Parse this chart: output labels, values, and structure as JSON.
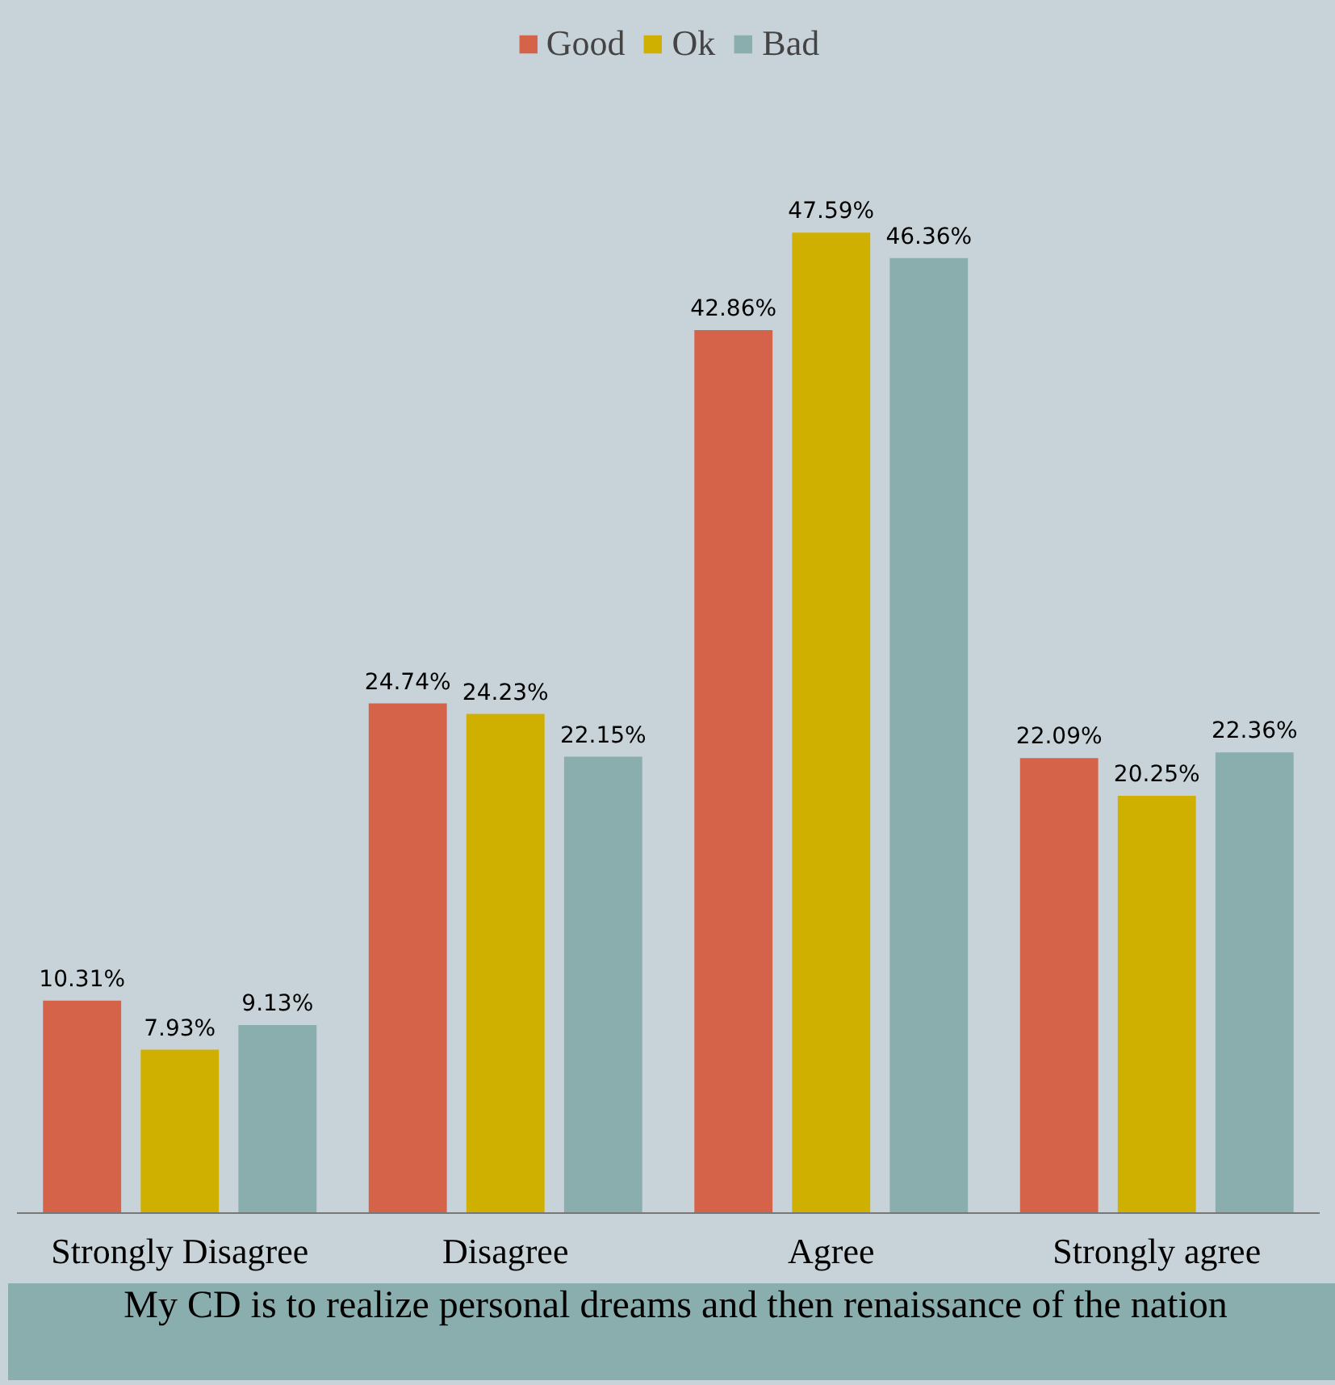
{
  "chart_data": {
    "type": "bar",
    "categories": [
      "Strongly Disagree",
      "Disagree",
      "Agree",
      "Strongly agree"
    ],
    "series": [
      {
        "name": "Good",
        "color": "#d4634a",
        "values": [
          10.31,
          24.74,
          42.86,
          22.09
        ],
        "value_labels": [
          "10.31%",
          "24.74%",
          "42.86%",
          "22.09%"
        ]
      },
      {
        "name": "Ok",
        "color": "#cfb000",
        "values": [
          7.93,
          24.23,
          47.59,
          20.25
        ],
        "value_labels": [
          "7.93%",
          "24.23%",
          "47.59%",
          "20.25%"
        ]
      },
      {
        "name": "Bad",
        "color": "#8aadae",
        "values": [
          9.13,
          22.15,
          46.36,
          22.36
        ],
        "value_labels": [
          "9.13%",
          "22.15%",
          "46.36%",
          "22.36%"
        ]
      }
    ],
    "xlabel": "My CD is to realize personal dreams and then  renaissance of the nation",
    "legend": "top",
    "grid": false
  }
}
